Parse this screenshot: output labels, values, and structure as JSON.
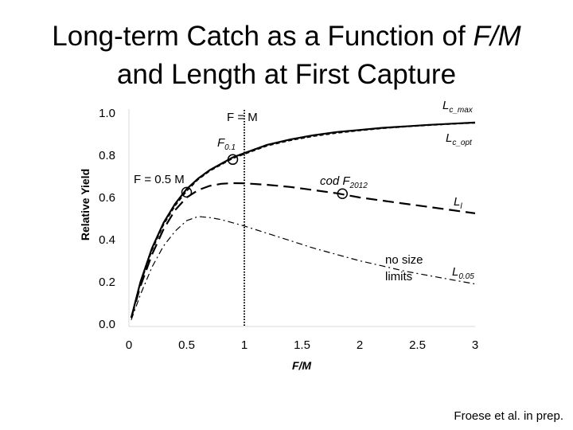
{
  "slide": {
    "title_line1_prefix": "Long-term Catch as a Function of ",
    "title_line1_ratio": "F/M",
    "title_line2": "and Length at First Capture",
    "credit": "Froese et al. in prep."
  },
  "chart_data": {
    "type": "line",
    "xlabel": "F/M",
    "ylabel": "Relative Yield",
    "xlim": [
      0,
      3
    ],
    "ylim": [
      0,
      1.0
    ],
    "x_ticks": [
      "0",
      "0.5",
      "1",
      "1.5",
      "2",
      "2.5",
      "3"
    ],
    "y_ticks": [
      "0.0",
      "0.2",
      "0.4",
      "0.6",
      "0.8",
      "1.0"
    ],
    "grid": false,
    "series": [
      {
        "name": "Lc_max",
        "style": "solid",
        "x": [
          0.02,
          0.1,
          0.2,
          0.3,
          0.4,
          0.5,
          0.6,
          0.7,
          0.8,
          0.9,
          1.0,
          1.2,
          1.4,
          1.6,
          1.8,
          2.0,
          2.2,
          2.4,
          2.6,
          2.8,
          3.0
        ],
        "y": [
          0.03,
          0.2,
          0.36,
          0.48,
          0.57,
          0.64,
          0.69,
          0.73,
          0.76,
          0.79,
          0.81,
          0.85,
          0.875,
          0.895,
          0.91,
          0.92,
          0.93,
          0.937,
          0.944,
          0.95,
          0.955
        ]
      },
      {
        "name": "Lc_opt",
        "style": "dashed-fine",
        "x": [
          0.02,
          0.1,
          0.2,
          0.3,
          0.4,
          0.5,
          0.6,
          0.7,
          0.8,
          0.9,
          1.0,
          1.2,
          1.4,
          1.6,
          1.8,
          2.0,
          2.2,
          2.4,
          2.6,
          2.8,
          3.0
        ],
        "y": [
          0.03,
          0.19,
          0.35,
          0.47,
          0.56,
          0.63,
          0.685,
          0.725,
          0.755,
          0.785,
          0.805,
          0.845,
          0.87,
          0.89,
          0.905,
          0.917,
          0.927,
          0.935,
          0.942,
          0.948,
          0.953
        ]
      },
      {
        "name": "Ll",
        "style": "dashed",
        "x": [
          0.02,
          0.1,
          0.2,
          0.3,
          0.4,
          0.5,
          0.6,
          0.7,
          0.8,
          0.9,
          1.0,
          1.2,
          1.4,
          1.6,
          1.8,
          2.0,
          2.2,
          2.4,
          2.6,
          2.8,
          3.0
        ],
        "y": [
          0.03,
          0.18,
          0.33,
          0.45,
          0.54,
          0.6,
          0.635,
          0.655,
          0.665,
          0.668,
          0.667,
          0.66,
          0.65,
          0.635,
          0.62,
          0.6,
          0.585,
          0.57,
          0.555,
          0.54,
          0.525
        ]
      },
      {
        "name": "L0.05",
        "style": "dash-dot",
        "x": [
          0.02,
          0.1,
          0.2,
          0.3,
          0.4,
          0.5,
          0.6,
          0.7,
          0.8,
          0.9,
          1.0,
          1.2,
          1.4,
          1.6,
          1.8,
          2.0,
          2.2,
          2.4,
          2.6,
          2.8,
          3.0
        ],
        "y": [
          0.02,
          0.14,
          0.27,
          0.37,
          0.44,
          0.49,
          0.51,
          0.505,
          0.495,
          0.48,
          0.465,
          0.43,
          0.395,
          0.36,
          0.33,
          0.3,
          0.275,
          0.25,
          0.23,
          0.21,
          0.19
        ]
      }
    ],
    "vline": {
      "x": 1.0,
      "label": "F = M"
    },
    "markers": [
      {
        "label": "F0.1",
        "x": 0.9,
        "y": 0.78
      },
      {
        "label": "F = 0.5 M",
        "x": 0.5,
        "y": 0.625
      },
      {
        "label": "cod F2012",
        "x": 1.85,
        "y": 0.618
      }
    ],
    "annotations": {
      "vline_label": "F = M",
      "f01_main": "F",
      "f01_sub": "0.1",
      "half_m": "F = 0.5 M",
      "cod_main": "cod F",
      "cod_sub": "2012",
      "no_size_1": "no size",
      "no_size_2": "limits",
      "lcmax_main": "L",
      "lcmax_sub": "c_max",
      "lcopt_main": "L",
      "lcopt_sub": "c_opt",
      "ll_main": "L",
      "ll_sub": "l",
      "l005_main": "L",
      "l005_sub": "0.05"
    }
  }
}
